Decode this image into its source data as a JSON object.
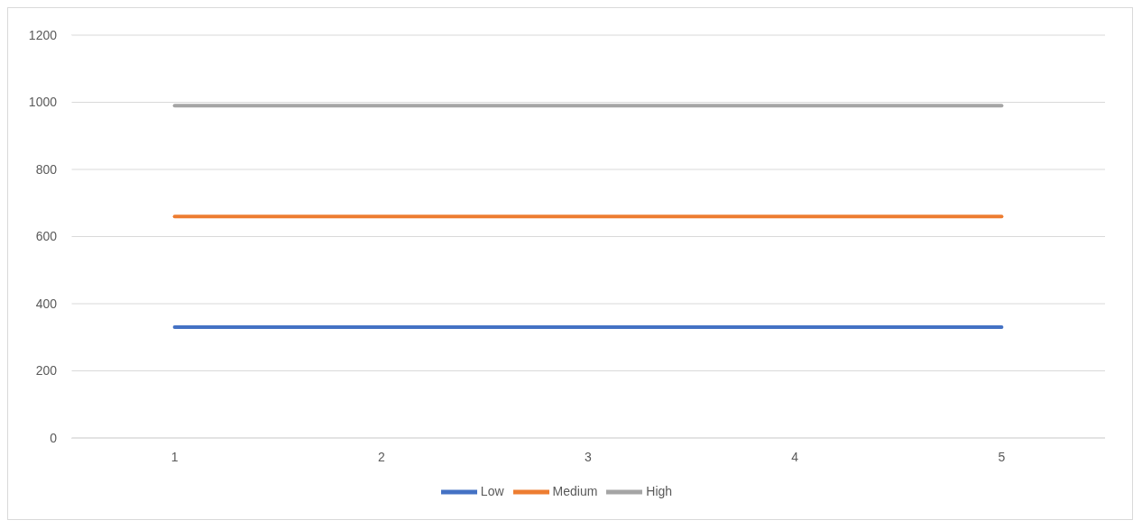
{
  "chart_data": {
    "type": "line",
    "categories": [
      "1",
      "2",
      "3",
      "4",
      "5"
    ],
    "series": [
      {
        "name": "Low",
        "color": "#4472c4",
        "values": [
          330,
          330,
          330,
          330,
          330
        ]
      },
      {
        "name": "Medium",
        "color": "#ed7d31",
        "values": [
          660,
          660,
          660,
          660,
          660
        ]
      },
      {
        "name": "High",
        "color": "#a5a5a5",
        "values": [
          990,
          990,
          990,
          990,
          990
        ]
      }
    ],
    "ylim": [
      0,
      1200
    ],
    "yticks": [
      0,
      200,
      400,
      600,
      800,
      1000,
      1200
    ],
    "grid": "y",
    "legend": "bottom",
    "marker": "none",
    "line_style": "solid"
  }
}
